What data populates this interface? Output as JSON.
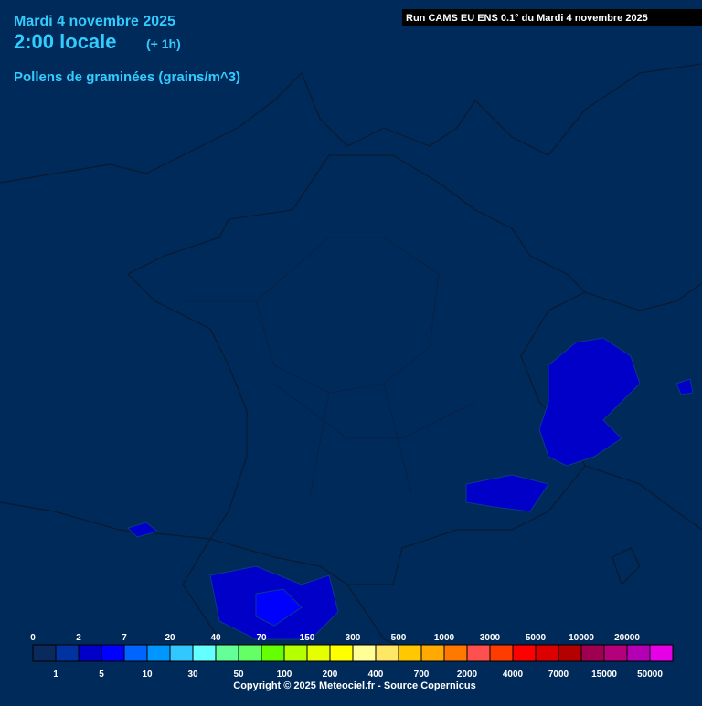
{
  "header": {
    "date": "Mardi 4 novembre 2025",
    "time": "2:00 locale",
    "offset": "(+ 1h)",
    "variable": "Pollens de graminées (grains/m^3)",
    "run": "Run CAMS EU ENS 0.1° du Mardi 4 novembre 2025"
  },
  "legend": {
    "values": [
      0,
      1,
      2,
      5,
      7,
      10,
      20,
      30,
      40,
      50,
      70,
      100,
      150,
      200,
      300,
      400,
      500,
      700,
      1000,
      2000,
      3000,
      4000,
      5000,
      7000,
      10000,
      15000,
      20000,
      50000
    ],
    "colors": [
      "#0a2a5e",
      "#0033a0",
      "#0000c8",
      "#0000ff",
      "#0064ff",
      "#0096ff",
      "#32c8ff",
      "#64ffff",
      "#64ff96",
      "#64ff64",
      "#64ff00",
      "#b4ff00",
      "#e6ff00",
      "#ffff00",
      "#ffff96",
      "#ffe664",
      "#ffc800",
      "#ffaa00",
      "#ff7800",
      "#ff5050",
      "#ff3c00",
      "#ff0000",
      "#dc0000",
      "#b40000",
      "#a00050",
      "#b4007a",
      "#b400b4",
      "#e600e6"
    ]
  },
  "footer": {
    "copyright": "Copyright © 2025 Meteociel.fr - Source Copernicus"
  }
}
